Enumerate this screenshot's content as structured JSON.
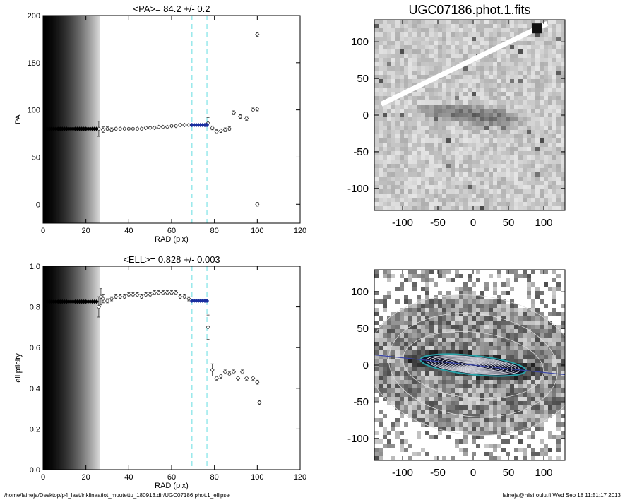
{
  "footer": {
    "path": "/home/laineja/Desktop/p4_last/inklinaatiot_muutettu_180913.dir/UGC07186.phot.1_ellipse",
    "stamp": "laineja@hiisi.oulu.fi  Wed Sep 18 11:51:17 2013"
  },
  "chart_data": [
    {
      "type": "scatter",
      "title": "<PA>=  84.2 +/-   0.2",
      "xlabel": "RAD (pix)",
      "ylabel": "PA",
      "xlim": [
        0,
        120
      ],
      "ylim": [
        -20,
        200
      ],
      "xticks": [
        0,
        20,
        40,
        60,
        80,
        100,
        120
      ],
      "yticks": [
        0,
        50,
        100,
        150,
        200
      ],
      "vlines": [
        69.5,
        76.5
      ],
      "series": [
        {
          "style": "open-diamond-with-errorbars",
          "x": [
            26,
            28,
            30,
            32,
            34,
            36,
            38,
            40,
            42,
            44,
            46,
            48,
            50,
            52,
            54,
            56,
            58,
            60,
            62,
            64,
            66,
            68,
            77,
            79,
            81,
            83,
            85,
            87,
            89,
            92,
            95,
            98,
            100,
            100,
            100
          ],
          "y": [
            80,
            79,
            80,
            79,
            80,
            80,
            80,
            80,
            80,
            80,
            80,
            81,
            81,
            81,
            82,
            82,
            82,
            83,
            83,
            84,
            84,
            84,
            86,
            81,
            77,
            78,
            79,
            80,
            97,
            93,
            91,
            100,
            101,
            180,
            0
          ],
          "yerr": [
            8,
            3,
            2,
            2,
            1,
            1,
            1,
            1,
            1,
            1,
            1,
            1,
            1,
            1,
            1,
            1,
            1,
            1,
            1,
            1,
            1,
            1,
            6,
            2,
            2,
            2,
            2,
            2,
            2,
            2,
            2,
            2,
            2,
            2,
            2
          ]
        },
        {
          "style": "filled-blue-diamond",
          "x": [
            69.5,
            70.5,
            71.5,
            72.5,
            73.5,
            74.5,
            75.5,
            76.5
          ],
          "y": [
            84,
            84,
            84,
            84,
            84,
            84,
            84,
            84
          ]
        },
        {
          "style": "filled-black-diamond",
          "x": [
            0,
            1,
            2,
            3,
            4,
            5,
            6,
            7,
            8,
            9,
            10,
            11,
            12,
            13,
            14,
            15,
            16,
            17,
            18,
            19,
            20,
            21,
            22,
            23,
            24,
            25
          ],
          "y": [
            80,
            80,
            80,
            80,
            80,
            80,
            80,
            80,
            80,
            80,
            80,
            80,
            80,
            80,
            80,
            80,
            80,
            80,
            80,
            80,
            80,
            80,
            80,
            80,
            80,
            80
          ]
        }
      ]
    },
    {
      "type": "scatter",
      "title": "<ELL>= 0.828 +/-  0.003",
      "xlabel": "RAD (pix)",
      "ylabel": "ellipticity",
      "xlim": [
        0,
        120
      ],
      "ylim": [
        0,
        1
      ],
      "xticks": [
        0,
        20,
        40,
        60,
        80,
        100,
        120
      ],
      "yticks": [
        0.0,
        0.2,
        0.4,
        0.6,
        0.8,
        1.0
      ],
      "vlines": [
        69.5,
        76.5
      ],
      "series": [
        {
          "style": "open-diamond-with-errorbars",
          "x": [
            26,
            27,
            28,
            30,
            32,
            34,
            36,
            38,
            40,
            42,
            44,
            46,
            48,
            50,
            52,
            54,
            56,
            58,
            60,
            62,
            64,
            66,
            68,
            77,
            79,
            81,
            83,
            85,
            87,
            89,
            91,
            93,
            95,
            98,
            100,
            101
          ],
          "y": [
            0.8,
            0.85,
            0.84,
            0.83,
            0.84,
            0.85,
            0.85,
            0.85,
            0.86,
            0.86,
            0.86,
            0.85,
            0.86,
            0.86,
            0.87,
            0.87,
            0.87,
            0.87,
            0.87,
            0.87,
            0.85,
            0.85,
            0.84,
            0.7,
            0.49,
            0.45,
            0.46,
            0.48,
            0.47,
            0.48,
            0.45,
            0.48,
            0.45,
            0.45,
            0.43,
            0.33
          ],
          "yerr": [
            0.05,
            0.04,
            0.02,
            0.01,
            0.01,
            0.01,
            0.01,
            0.01,
            0.01,
            0.01,
            0.01,
            0.01,
            0.01,
            0.01,
            0.01,
            0.01,
            0.01,
            0.01,
            0.01,
            0.01,
            0.01,
            0.01,
            0.01,
            0.06,
            0.03,
            0.01,
            0.01,
            0.01,
            0.01,
            0.01,
            0.01,
            0.01,
            0.01,
            0.01,
            0.01,
            0.01
          ]
        },
        {
          "style": "filled-blue-diamond",
          "x": [
            69.5,
            70.5,
            71.5,
            72.5,
            73.5,
            74.5,
            75.5,
            76.5
          ],
          "y": [
            0.83,
            0.83,
            0.83,
            0.83,
            0.83,
            0.83,
            0.83,
            0.83
          ]
        },
        {
          "style": "filled-black-diamond",
          "x": [
            0,
            1,
            2,
            3,
            4,
            5,
            6,
            7,
            8,
            9,
            10,
            11,
            12,
            13,
            14,
            15,
            16,
            17,
            18,
            19,
            20,
            21,
            22,
            23,
            24,
            25
          ],
          "y": [
            0.826,
            0.826,
            0.826,
            0.826,
            0.826,
            0.826,
            0.826,
            0.826,
            0.826,
            0.826,
            0.826,
            0.826,
            0.826,
            0.826,
            0.826,
            0.826,
            0.826,
            0.826,
            0.826,
            0.826,
            0.826,
            0.826,
            0.826,
            0.826,
            0.826,
            0.826
          ]
        }
      ]
    },
    {
      "type": "heatmap",
      "title": "UGC07186.phot.1.fits",
      "xlim": [
        -140,
        130
      ],
      "ylim": [
        -130,
        130
      ],
      "xticks": [
        -100,
        -50,
        0,
        50,
        100
      ],
      "yticks": [
        -100,
        -50,
        0,
        50,
        100
      ],
      "colormap": "grayscale"
    },
    {
      "type": "heatmap",
      "title": "",
      "xlim": [
        -140,
        130
      ],
      "ylim": [
        -130,
        130
      ],
      "xticks": [
        -100,
        -50,
        0,
        50,
        100
      ],
      "yticks": [
        -100,
        -50,
        0,
        50,
        100
      ],
      "colormap": "grayscale",
      "overlay": "ellipse isophotes"
    }
  ]
}
